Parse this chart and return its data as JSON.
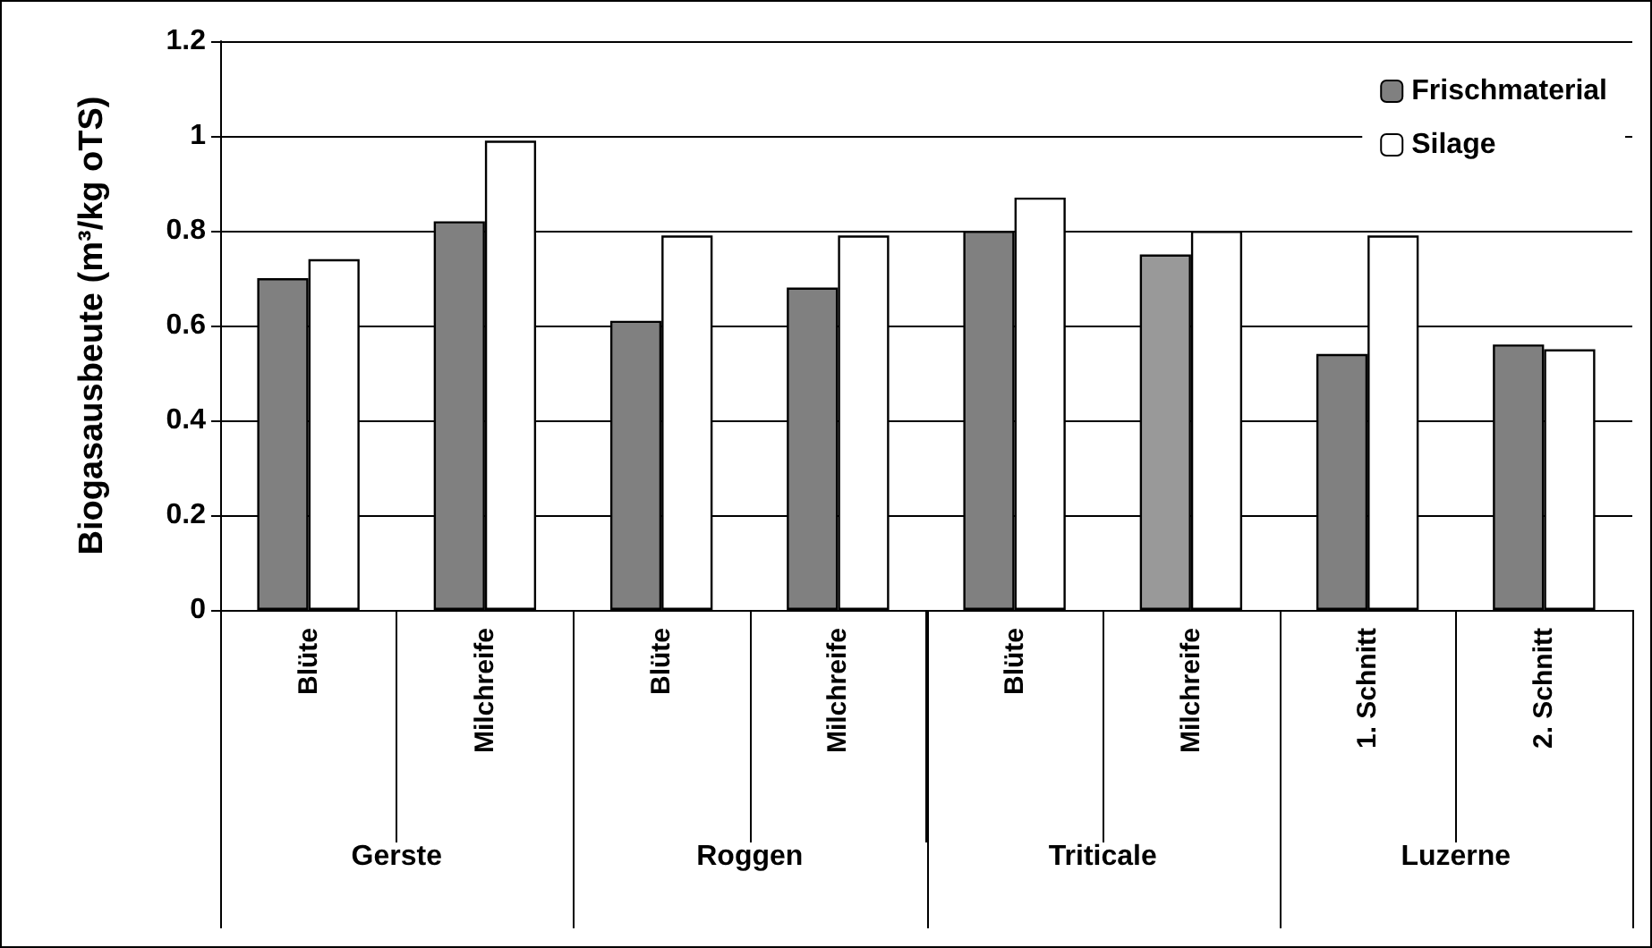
{
  "chart_data": {
    "type": "bar",
    "ylabel": "Biogasausbeute (m³/kg oTS)",
    "categories": [
      "Blüte",
      "Milchreife",
      "Blüte",
      "Milchreife",
      "Blüte",
      "Milchreife",
      "1. Schnitt",
      "2. Schnitt"
    ],
    "annotations": [
      "Gerste",
      "Roggen",
      "Triticale",
      "Luzerne"
    ],
    "series": [
      {
        "name": "Frischmaterial",
        "color": "#808080",
        "colors": [
          "#808080",
          "#808080",
          "#808080",
          "#808080",
          "#808080",
          "#999999",
          "#808080",
          "#808080"
        ],
        "values": [
          0.7,
          0.82,
          0.61,
          0.68,
          0.8,
          0.75,
          0.54,
          0.56
        ]
      },
      {
        "name": "Silage",
        "color": "#ffffff",
        "values": [
          0.74,
          0.99,
          0.79,
          0.79,
          0.87,
          0.8,
          0.79,
          0.55
        ]
      }
    ],
    "ylim": [
      0,
      1.2
    ],
    "yticks": [
      0,
      0.2,
      0.4,
      0.6,
      0.8,
      1,
      1.2
    ],
    "grid": "y",
    "legend": "top right"
  }
}
